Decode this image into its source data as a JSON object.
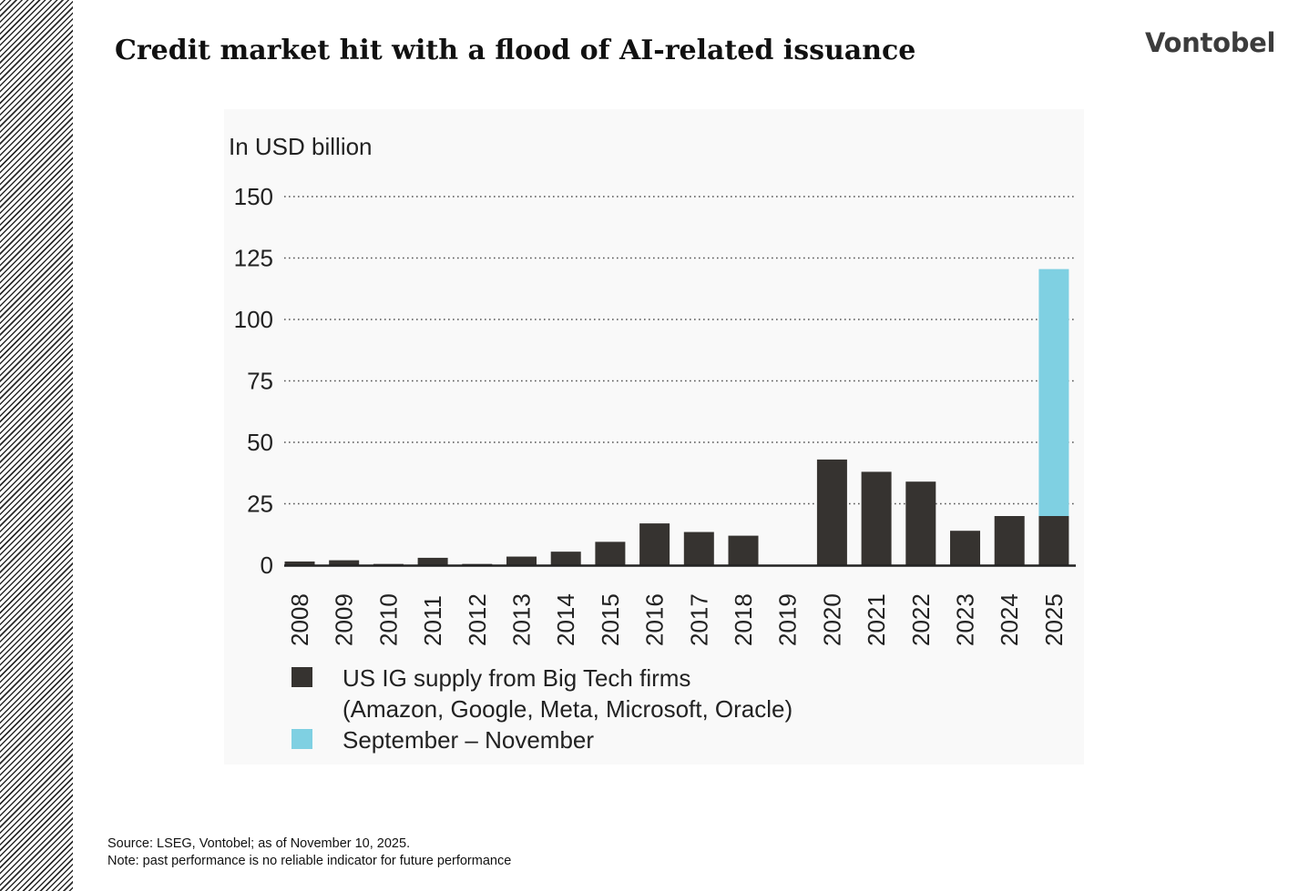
{
  "slide": {
    "title": "Credit market hit with a flood of AI-related issuance",
    "brand": "Vontobel",
    "source": "Source: LSEG, Vontobel; as of November 10, 2025.",
    "note": "Note: past performance is no reliable indicator for future performance"
  },
  "chart_data": {
    "type": "bar",
    "stacked": true,
    "ylabel": "In USD billion",
    "ylim": [
      0,
      150
    ],
    "yticks": [
      0,
      25,
      50,
      75,
      100,
      125,
      150
    ],
    "grid": "dotted horizontal",
    "categories": [
      "2008",
      "2009",
      "2010",
      "2011",
      "2012",
      "2013",
      "2014",
      "2015",
      "2016",
      "2017",
      "2018",
      "2019",
      "2020",
      "2021",
      "2022",
      "2023",
      "2024",
      "2025"
    ],
    "series": [
      {
        "name": "US IG supply from Big Tech firms",
        "name_line2": "(Amazon, Google, Meta, Microsoft, Oracle)",
        "color": "#363330",
        "values": [
          1.5,
          2,
          0.5,
          3,
          0.5,
          3.5,
          5.5,
          9.5,
          17,
          13.5,
          12,
          0,
          43,
          38,
          34,
          14,
          20,
          20
        ]
      },
      {
        "name": "September – November",
        "color": "#7fd0e2",
        "values": [
          0,
          0,
          0,
          0,
          0,
          0,
          0,
          0,
          0,
          0,
          0,
          0,
          0,
          0,
          0,
          0,
          0,
          100.5
        ]
      }
    ],
    "legend_position": "bottom"
  }
}
